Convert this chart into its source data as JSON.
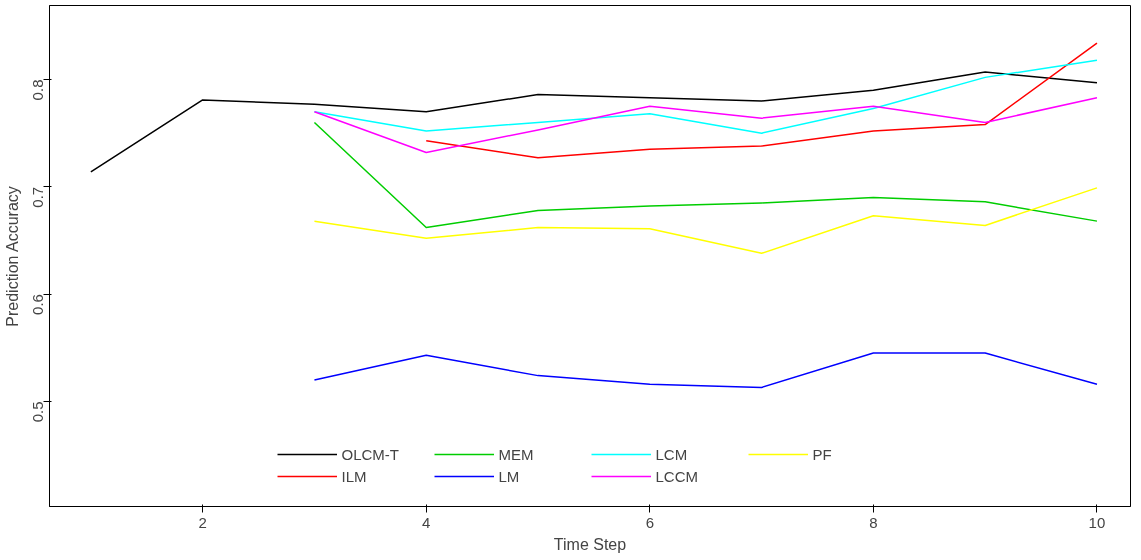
{
  "chart_data": {
    "type": "line",
    "xlabel": "Time Step",
    "ylabel": "Prediction Accuracy",
    "xlim": [
      0.63,
      10.3
    ],
    "ylim": [
      0.402,
      0.869
    ],
    "xticks": [
      2,
      4,
      6,
      8,
      10
    ],
    "yticks": [
      0.5,
      0.6,
      0.7,
      0.8
    ],
    "grid": false,
    "legend": "bottom",
    "marker": "none",
    "line_style": "solid",
    "series": [
      {
        "name": "OLCM-T",
        "color": "#000000",
        "x": [
          1,
          2,
          3,
          4,
          5,
          6,
          7,
          8,
          9,
          10
        ],
        "values": [
          0.714,
          0.781,
          0.777,
          0.77,
          0.786,
          0.783,
          0.78,
          0.79,
          0.807,
          0.797
        ]
      },
      {
        "name": "ILM",
        "color": "#ff0000",
        "x": [
          4,
          5,
          6,
          7,
          8,
          9,
          10
        ],
        "values": [
          0.743,
          0.727,
          0.735,
          0.738,
          0.752,
          0.758,
          0.834
        ]
      },
      {
        "name": "MEM",
        "color": "#00cd00",
        "x": [
          3,
          4,
          5,
          6,
          7,
          8,
          9,
          10
        ],
        "values": [
          0.76,
          0.662,
          0.678,
          0.682,
          0.685,
          0.69,
          0.686,
          0.668
        ]
      },
      {
        "name": "LM",
        "color": "#0000ff",
        "x": [
          3,
          4,
          5,
          6,
          7,
          8,
          9,
          10
        ],
        "values": [
          0.52,
          0.543,
          0.524,
          0.516,
          0.513,
          0.545,
          0.545,
          0.516
        ]
      },
      {
        "name": "LCM",
        "color": "#00ffff",
        "x": [
          3,
          4,
          5,
          6,
          7,
          8,
          9,
          10
        ],
        "values": [
          0.77,
          0.752,
          0.76,
          0.768,
          0.75,
          0.773,
          0.802,
          0.818
        ]
      },
      {
        "name": "LCCM",
        "color": "#ff00ff",
        "x": [
          3,
          4,
          5,
          6,
          7,
          8,
          9,
          10
        ],
        "values": [
          0.77,
          0.732,
          0.753,
          0.775,
          0.764,
          0.775,
          0.76,
          0.783
        ]
      },
      {
        "name": "PF",
        "color": "#ffff00",
        "x": [
          3,
          4,
          5,
          6,
          7,
          8,
          9,
          10
        ],
        "values": [
          0.668,
          0.652,
          0.662,
          0.661,
          0.638,
          0.673,
          0.664,
          0.699
        ]
      }
    ]
  }
}
